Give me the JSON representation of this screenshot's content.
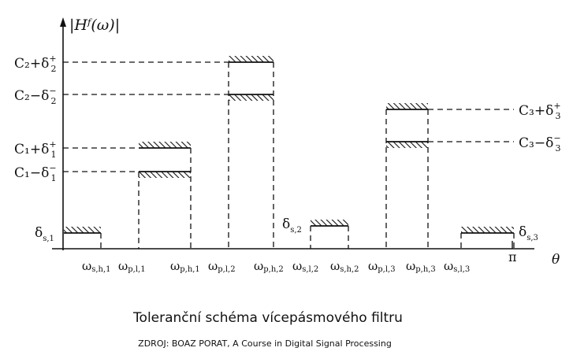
{
  "diagram": {
    "y_axis_label": "|Hᶠ(ω)|",
    "x_axis_label": "θ",
    "pi_label": "π",
    "level_labels": {
      "c2_plus": {
        "main": "C₂+δ",
        "sup": "+",
        "sub": "2"
      },
      "c2_minus": {
        "main": "C₂−δ",
        "sup": "−",
        "sub": "2"
      },
      "c1_plus": {
        "main": "C₁+δ",
        "sup": "+",
        "sub": "1"
      },
      "c1_minus": {
        "main": "C₁−δ",
        "sup": "−",
        "sub": "1"
      },
      "c3_plus": {
        "main": "C₃+δ",
        "sup": "+",
        "sub": "3"
      },
      "c3_minus": {
        "main": "C₃−δ",
        "sup": "−",
        "sub": "3"
      }
    },
    "stop_labels": {
      "s1": {
        "main": "δ",
        "sub": "s,1"
      },
      "s2": {
        "main": "δ",
        "sub": "s,2"
      },
      "s3": {
        "main": "δ",
        "sub": "s,3"
      }
    },
    "freq_labels": [
      {
        "main": "ω",
        "sub": "s,h,1"
      },
      {
        "main": "ω",
        "sub": "p,l,1"
      },
      {
        "main": "ω",
        "sub": "p,h,1"
      },
      {
        "main": "ω",
        "sub": "p,l,2"
      },
      {
        "main": "ω",
        "sub": "p,h,2"
      },
      {
        "main": "ω",
        "sub": "s,l,2"
      },
      {
        "main": "ω",
        "sub": "s,h,2"
      },
      {
        "main": "ω",
        "sub": "p,l,3"
      },
      {
        "main": "ω",
        "sub": "p,h,3"
      },
      {
        "main": "ω",
        "sub": "s,l,3"
      }
    ]
  },
  "caption": "Toleranční schéma vícepásmového filtru",
  "source": "ZDROJ: BOAZ PORAT, A Course in Digital Signal Processing"
}
